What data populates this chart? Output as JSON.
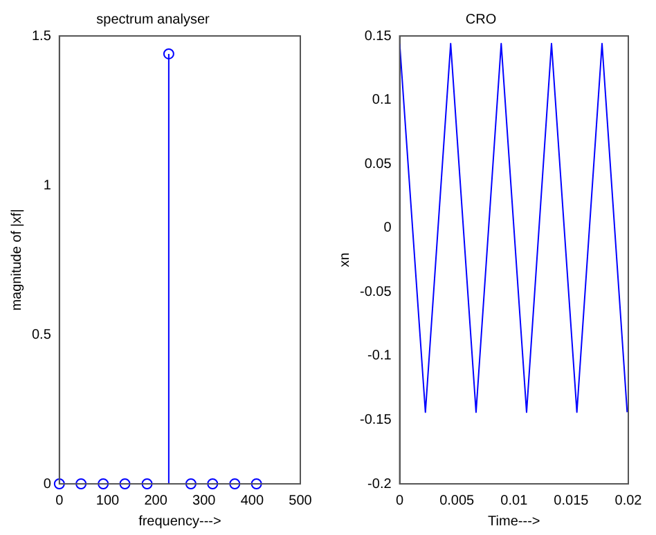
{
  "chart_data": [
    {
      "type": "lollipop",
      "title": "spectrum analyser",
      "xlabel": "frequency--->",
      "ylabel": "magnitude of |xf|",
      "x": [
        0,
        45,
        91,
        136,
        182,
        227,
        273,
        318,
        364,
        409
      ],
      "values": [
        0,
        0,
        0,
        0,
        0,
        1.44,
        0,
        0,
        0,
        0
      ],
      "color": "#0000ff",
      "marker": "circle",
      "grid": false,
      "xlim": [
        0,
        500
      ],
      "xticks": [
        0,
        100,
        200,
        300,
        400,
        500
      ],
      "ylim": [
        0,
        1.5
      ],
      "yticks": [
        0,
        0.5,
        1,
        1.5
      ]
    },
    {
      "type": "line",
      "title": "CRO",
      "xlabel": "Time--->",
      "ylabel": "xn",
      "x": [
        0,
        0.00225,
        0.00446,
        0.00668,
        0.00888,
        0.0111,
        0.01328,
        0.0155,
        0.0177,
        0.0199
      ],
      "values": [
        0.144,
        -0.144,
        0.144,
        -0.144,
        0.144,
        -0.144,
        0.144,
        -0.144,
        0.144,
        -0.144
      ],
      "color": "#0000ff",
      "grid": false,
      "xlim": [
        0,
        0.02
      ],
      "xticks": [
        0,
        0.005,
        0.01,
        0.015,
        0.02
      ],
      "ylim": [
        -0.2,
        0.15
      ],
      "yticks": [
        -0.2,
        -0.15,
        -0.1,
        -0.05,
        0,
        0.05,
        0.1,
        0.15
      ]
    }
  ]
}
